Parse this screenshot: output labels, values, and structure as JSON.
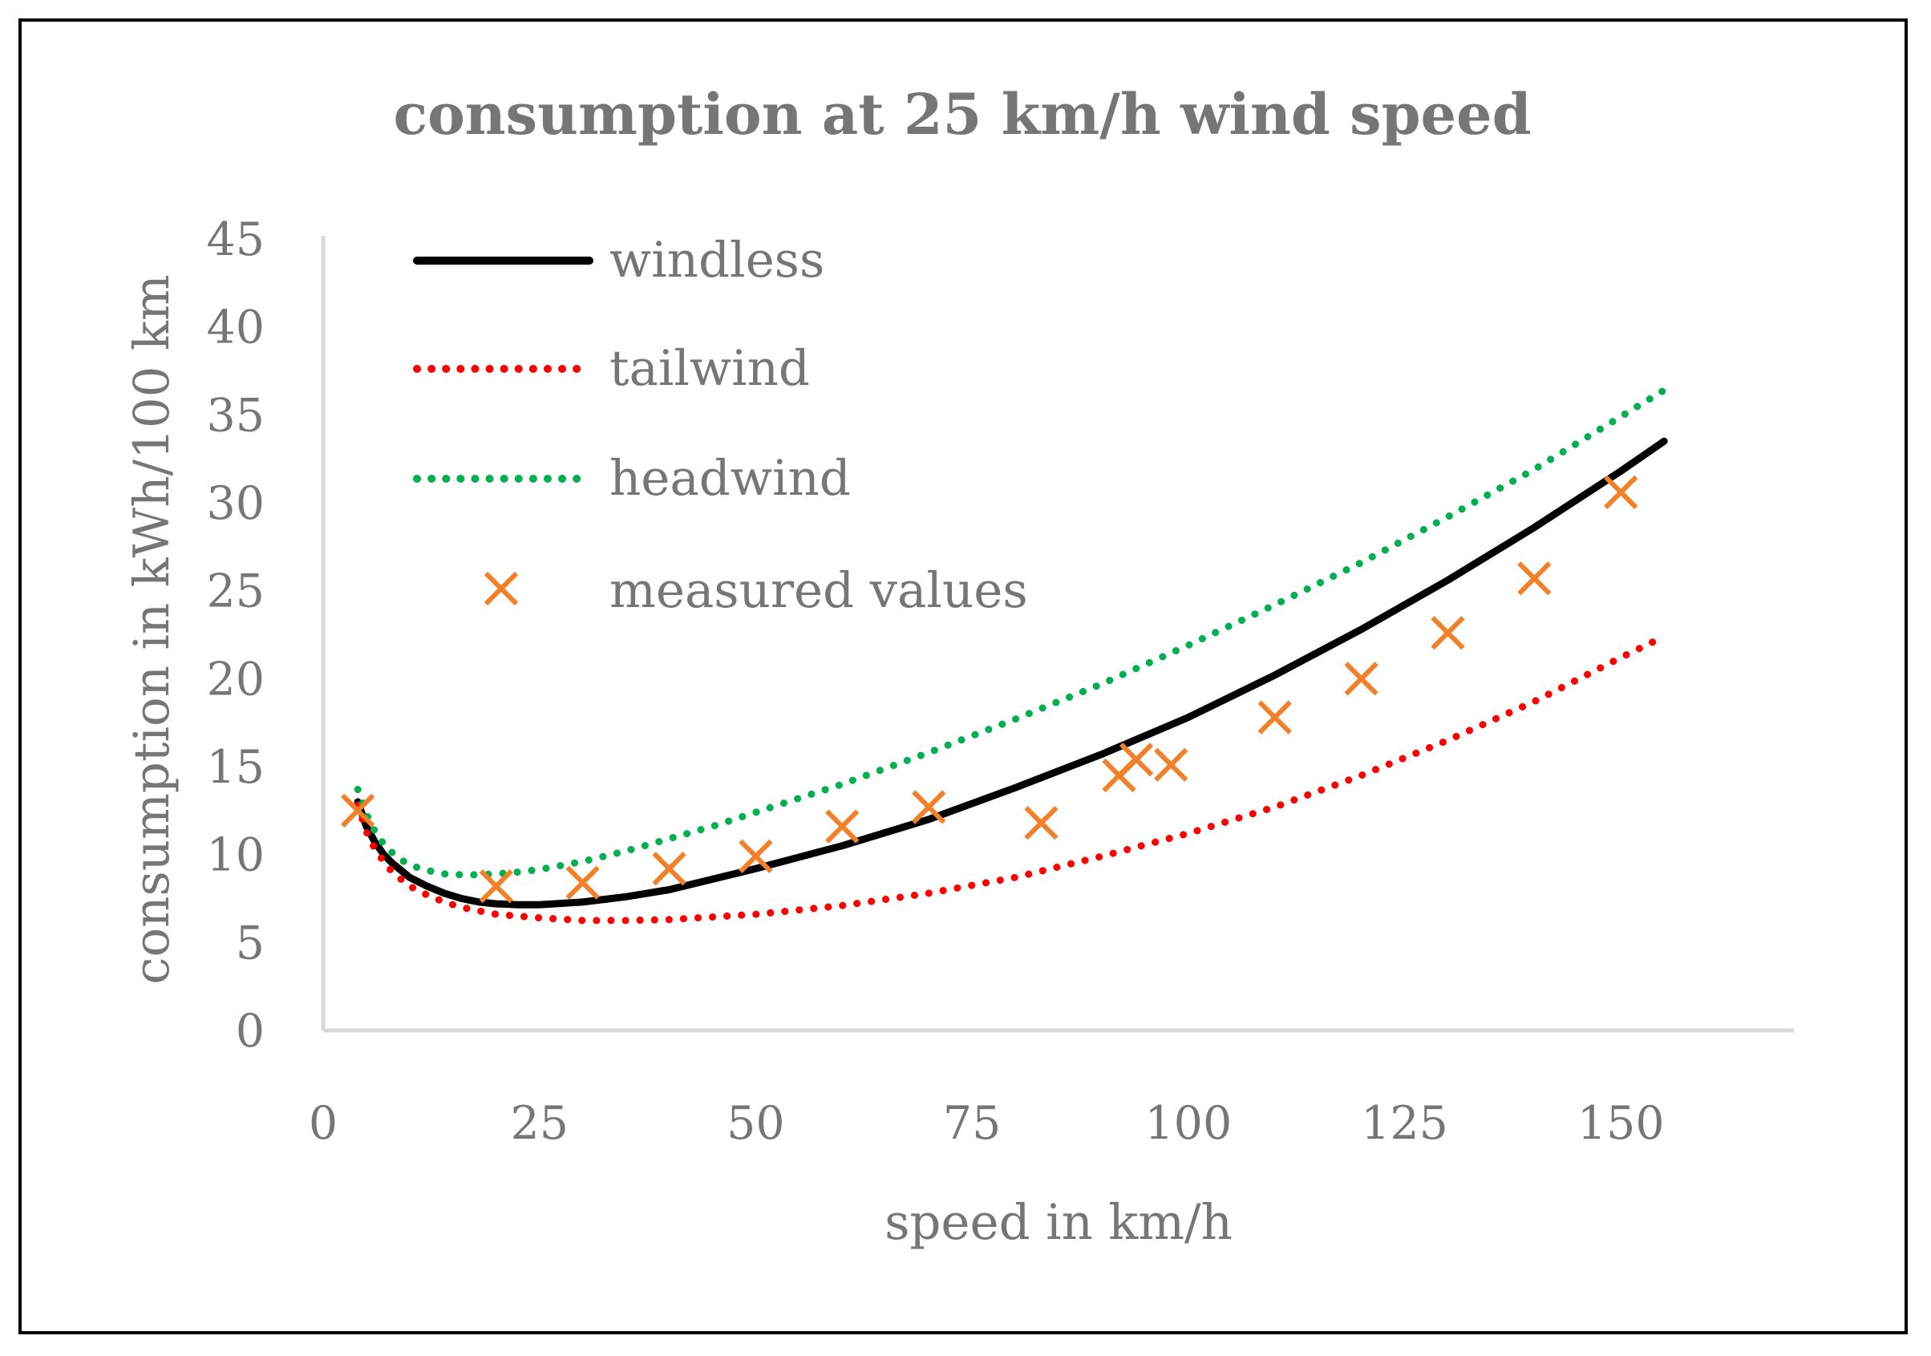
{
  "chart_data": {
    "type": "scatter",
    "title": "consumption at 25 km/h wind speed",
    "xlabel": "speed in km/h",
    "ylabel": "consumption in kWh/100 km",
    "xlim": [
      0,
      170
    ],
    "ylim": [
      0,
      45
    ],
    "xticks": [
      0,
      25,
      50,
      75,
      100,
      125,
      150
    ],
    "yticks": [
      0,
      5,
      10,
      15,
      20,
      25,
      30,
      35,
      40,
      45
    ],
    "grid": false,
    "legend_position": "top-left",
    "series": [
      {
        "name": "windless",
        "style": "solid-line",
        "color": "#000000",
        "x": [
          4,
          5,
          6,
          7,
          8,
          9,
          10,
          12,
          14,
          16,
          18,
          20,
          22.5,
          25,
          30,
          35,
          40,
          45,
          50,
          60,
          70,
          80,
          90,
          100,
          110,
          120,
          130,
          140,
          150,
          155
        ],
        "y": [
          13.0,
          11.6,
          10.7,
          10.0,
          9.5,
          9.1,
          8.7,
          8.2,
          7.8,
          7.5,
          7.3,
          7.2,
          7.15,
          7.15,
          7.3,
          7.6,
          8.0,
          8.6,
          9.2,
          10.5,
          12.0,
          13.8,
          15.7,
          17.8,
          20.2,
          22.8,
          25.6,
          28.6,
          31.8,
          33.5
        ]
      },
      {
        "name": "tailwind",
        "style": "dotted-line",
        "color": "#ff0000",
        "x": [
          4,
          5,
          6,
          7,
          8,
          9,
          10,
          12,
          14,
          16,
          18,
          20,
          22.5,
          25,
          30,
          35,
          40,
          45,
          50,
          60,
          70,
          80,
          90,
          100,
          110,
          120,
          130,
          140,
          150,
          155
        ],
        "y": [
          12.8,
          11.3,
          10.3,
          9.6,
          9.0,
          8.6,
          8.2,
          7.7,
          7.3,
          7.0,
          6.8,
          6.6,
          6.5,
          6.4,
          6.25,
          6.25,
          6.3,
          6.45,
          6.6,
          7.1,
          7.8,
          8.7,
          9.9,
          11.2,
          12.7,
          14.5,
          16.5,
          18.7,
          21.2,
          22.4
        ]
      },
      {
        "name": "headwind",
        "style": "dotted-line",
        "color": "#00b050",
        "x": [
          4,
          5,
          6,
          7,
          8,
          9,
          10,
          12,
          14,
          16,
          18,
          20,
          22.5,
          25,
          30,
          35,
          40,
          45,
          50,
          60,
          70,
          80,
          90,
          100,
          110,
          120,
          130,
          140,
          150,
          155
        ],
        "y": [
          13.7,
          12.3,
          11.3,
          10.6,
          10.1,
          9.7,
          9.4,
          9.1,
          8.9,
          8.85,
          8.85,
          8.9,
          9.0,
          9.15,
          9.6,
          10.2,
          10.9,
          11.6,
          12.4,
          14.0,
          15.8,
          17.7,
          19.7,
          21.9,
          24.2,
          26.6,
          29.2,
          31.9,
          34.9,
          36.4
        ]
      },
      {
        "name": "measured values",
        "style": "markers-x",
        "color": "#f28028",
        "x": [
          4,
          20,
          30,
          40,
          50,
          60,
          70,
          83,
          92,
          94,
          98,
          110,
          120,
          130,
          140,
          150
        ],
        "y": [
          12.5,
          8.2,
          8.4,
          9.2,
          9.9,
          11.6,
          12.7,
          11.8,
          14.5,
          15.4,
          15.1,
          17.8,
          20.0,
          22.6,
          25.7,
          30.6
        ]
      }
    ]
  }
}
